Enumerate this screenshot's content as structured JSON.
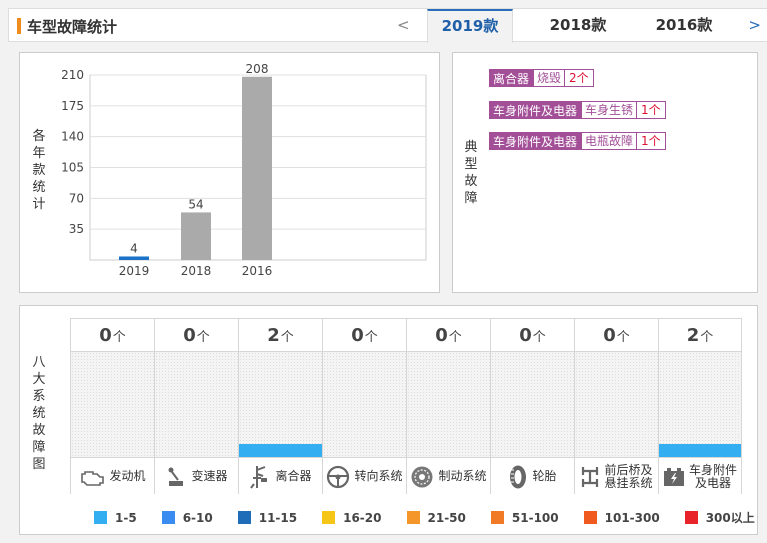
{
  "header": {
    "title": "车型故障统计",
    "prev_arrow": "<",
    "next_arrow": ">",
    "tabs": [
      {
        "label": "2019款",
        "active": true
      },
      {
        "label": "2018款",
        "active": false
      },
      {
        "label": "2016款",
        "active": false
      }
    ]
  },
  "chart_panel": {
    "side_label": "各年款统计"
  },
  "chart_data": {
    "type": "bar",
    "categories": [
      "2019",
      "2018",
      "2016"
    ],
    "values": [
      4,
      54,
      208
    ],
    "ylim": [
      0,
      210
    ],
    "yticks": [
      35,
      70,
      105,
      140,
      175,
      210
    ],
    "bar_colors": [
      "#1a73c8",
      "#aaaaaa",
      "#aaaaaa"
    ],
    "grid": true
  },
  "typical_faults": {
    "side_label": "典型故障",
    "items": [
      {
        "category": "离合器",
        "type": "烧毁",
        "count": "2个"
      },
      {
        "category": "车身附件及电器",
        "type": "车身生锈",
        "count": "1个"
      },
      {
        "category": "车身附件及电器",
        "type": "电瓶故障",
        "count": "1个"
      }
    ]
  },
  "systems": {
    "side_label": "八大系统故障图",
    "unit": "个",
    "fill_color": "#33aef0",
    "items": [
      {
        "name": "发动机",
        "count": "0",
        "level": 0,
        "icon": "engine-icon"
      },
      {
        "name": "变速器",
        "count": "0",
        "level": 0,
        "icon": "gear-shift-icon"
      },
      {
        "name": "离合器",
        "count": "2",
        "level": 0.12,
        "icon": "clutch-icon"
      },
      {
        "name": "转向系统",
        "count": "0",
        "level": 0,
        "icon": "steering-wheel-icon"
      },
      {
        "name": "制动系统",
        "count": "0",
        "level": 0,
        "icon": "brake-disc-icon"
      },
      {
        "name": "轮胎",
        "count": "0",
        "level": 0,
        "icon": "tire-icon"
      },
      {
        "name": "前后桥及悬挂系统",
        "name_lines": [
          "前后桥及",
          "悬挂系统"
        ],
        "count": "0",
        "level": 0,
        "icon": "suspension-icon"
      },
      {
        "name": "车身附件及电器",
        "name_lines": [
          "车身附件",
          "及电器"
        ],
        "count": "2",
        "level": 0.12,
        "icon": "battery-icon"
      }
    ]
  },
  "legend": [
    {
      "label": "1-5",
      "color": "#33aef0"
    },
    {
      "label": "6-10",
      "color": "#3a8cf0"
    },
    {
      "label": "11-15",
      "color": "#1f6db8"
    },
    {
      "label": "16-20",
      "color": "#f5c518"
    },
    {
      "label": "21-50",
      "color": "#f5962a"
    },
    {
      "label": "51-100",
      "color": "#f07a26"
    },
    {
      "label": "101-300",
      "color": "#f05a1e"
    },
    {
      "label": "300以上",
      "color": "#e8242a"
    }
  ]
}
